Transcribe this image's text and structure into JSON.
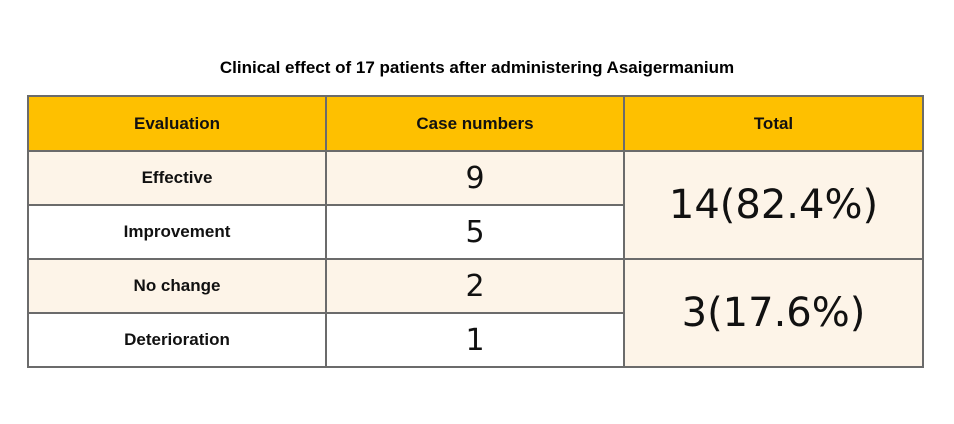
{
  "title": "Clinical effect of 17 patients after administering Asaigermanium",
  "table": {
    "headers": [
      "Evaluation",
      "Case numbers",
      "Total"
    ],
    "rows": [
      {
        "evaluation": "Effective",
        "cases": "9"
      },
      {
        "evaluation": "Improvement",
        "cases": "5"
      },
      {
        "evaluation": "No change",
        "cases": "2"
      },
      {
        "evaluation": "Deterioration",
        "cases": "1"
      }
    ],
    "totals": [
      "14(82.4%)",
      "3(17.6%)"
    ]
  },
  "colors": {
    "header_fill": "#fec000",
    "tinted_row_fill": "#fdf4e8",
    "border": "#6b6b6b"
  }
}
